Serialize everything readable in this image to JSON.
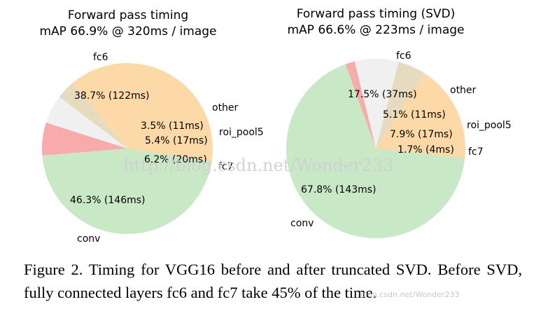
{
  "chart_data": [
    {
      "type": "pie",
      "title": "Forward pass timing",
      "subtitle": "mAP 66.9% @ 320ms / image",
      "slices": [
        {
          "name": "fc6",
          "percent": 38.7,
          "pct_label": "38.7% (122ms)",
          "color": "#fdd9a8"
        },
        {
          "name": "other",
          "percent": 3.5,
          "pct_label": "3.5% (11ms)",
          "color": "#e7dbbf"
        },
        {
          "name": "roi_pool5",
          "percent": 5.4,
          "pct_label": "5.4% (17ms)",
          "color": "#f0f0f0"
        },
        {
          "name": "fc7",
          "percent": 6.2,
          "pct_label": "6.2% (20ms)",
          "color": "#f8abab"
        },
        {
          "name": "conv",
          "percent": 46.3,
          "pct_label": "46.3% (146ms)",
          "color": "#c8e8c6"
        }
      ]
    },
    {
      "type": "pie",
      "title": "Forward pass timing (SVD)",
      "subtitle": "mAP 66.6% @ 223ms / image",
      "slices": [
        {
          "name": "fc6",
          "percent": 17.5,
          "pct_label": "17.5% (37ms)",
          "color": "#fdd9a8"
        },
        {
          "name": "other",
          "percent": 5.1,
          "pct_label": "5.1% (11ms)",
          "color": "#e7dbbf"
        },
        {
          "name": "roi_pool5",
          "percent": 7.9,
          "pct_label": "7.9% (17ms)",
          "color": "#f0f0f0"
        },
        {
          "name": "fc7",
          "percent": 1.7,
          "pct_label": "1.7% (4ms)",
          "color": "#f8abab"
        },
        {
          "name": "conv",
          "percent": 67.8,
          "pct_label": "67.8% (143ms)",
          "color": "#c8e8c6"
        }
      ]
    }
  ],
  "watermark": "http://blog.csdn.net/Wonder233",
  "caption": "Figure 2. Timing for VGG16 before and after truncated SVD. Before SVD, fully connected layers fc6 and fc7 take 45% of the time.",
  "caption_watermark": "blog.csdn.net/Wonder233"
}
